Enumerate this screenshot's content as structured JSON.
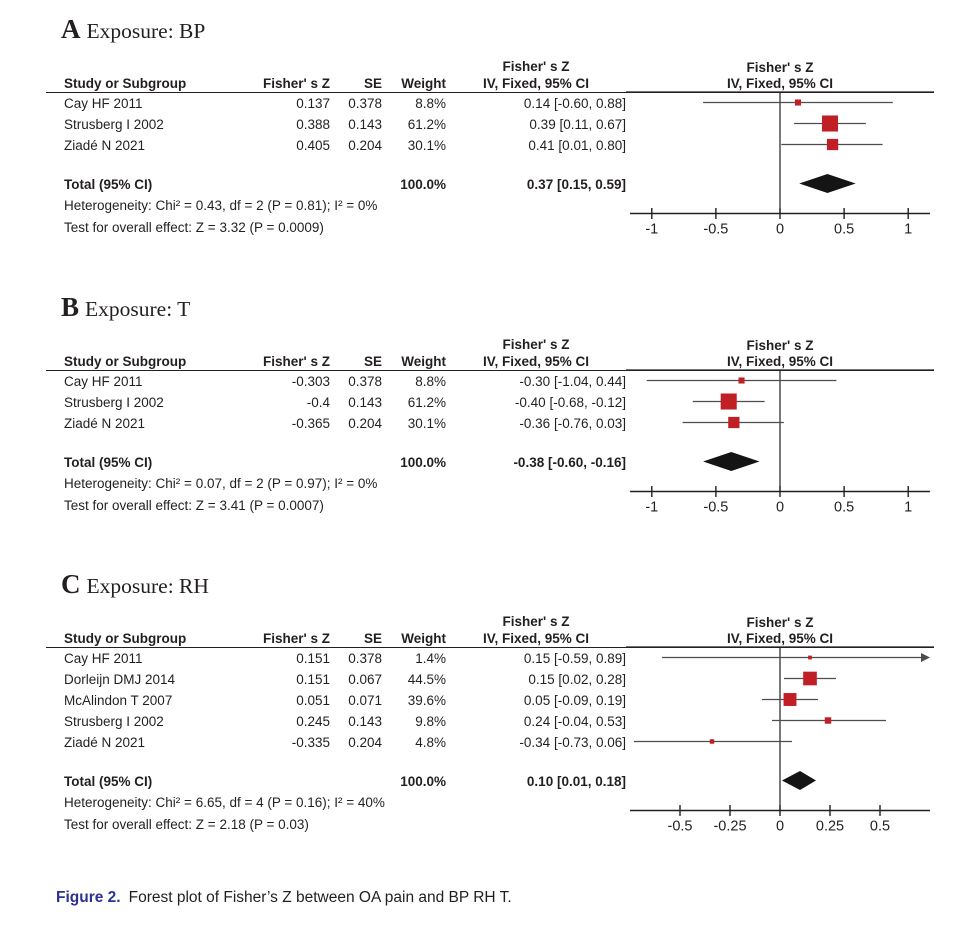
{
  "colors": {
    "marker_red": "#c01f26",
    "diamond_black": "#141414",
    "ci_line": "#4d4d4f",
    "rule_black": "#231f20",
    "caption_label_blue": "#2e3192"
  },
  "caption": {
    "label": "Figure 2.",
    "text": "Forest plot of Fisher’s Z between OA pain and BP RH T."
  },
  "chart_data": [
    {
      "type": "forest",
      "panel_label": "A",
      "title": "Exposure: BP",
      "columns": {
        "study": "Study or Subgroup",
        "effect": "Fisher' s Z",
        "se": "SE",
        "weight": "Weight",
        "ci": "IV, Fixed, 95% CI",
        "effect_group": "Fisher' s Z"
      },
      "studies": [
        {
          "name": "Cay HF 2011",
          "effect_text": "0.137",
          "se_text": "0.378",
          "weight_text": "8.8%",
          "ci_text": "0.14 [-0.60, 0.88]",
          "est": 0.14,
          "lo": -0.6,
          "hi": 0.88,
          "weight_pct": 8.8
        },
        {
          "name": "Strusberg I 2002",
          "effect_text": "0.388",
          "se_text": "0.143",
          "weight_text": "61.2%",
          "ci_text": "0.39 [0.11, 0.67]",
          "est": 0.39,
          "lo": 0.11,
          "hi": 0.67,
          "weight_pct": 61.2
        },
        {
          "name": "Ziadé N 2021",
          "effect_text": "0.405",
          "se_text": "0.204",
          "weight_text": "30.1%",
          "ci_text": "0.41 [0.01, 0.80]",
          "est": 0.41,
          "lo": 0.01,
          "hi": 0.8,
          "weight_pct": 30.1
        }
      ],
      "total": {
        "label": "Total (95% CI)",
        "weight_text": "100.0%",
        "ci_text": "0.37 [0.15, 0.59]",
        "est": 0.37,
        "lo": 0.15,
        "hi": 0.59
      },
      "heterogeneity": "Heterogeneity: Chi² = 0.43, df = 2 (P = 0.81); I² = 0%",
      "overall_effect": "Test for overall effect: Z = 3.32 (P = 0.0009)",
      "axis": {
        "min": -1.17,
        "max": 1.17,
        "ticks": [
          -1,
          -0.5,
          0,
          0.5,
          1
        ],
        "tick_labels": [
          "-1",
          "-0.5",
          "0",
          "0.5",
          "1"
        ]
      }
    },
    {
      "type": "forest",
      "panel_label": "B",
      "title": "Exposure: T",
      "columns": {
        "study": "Study or Subgroup",
        "effect": "Fisher' s Z",
        "se": "SE",
        "weight": "Weight",
        "ci": "IV, Fixed, 95% CI",
        "effect_group": "Fisher' s Z"
      },
      "studies": [
        {
          "name": "Cay HF 2011",
          "effect_text": "-0.303",
          "se_text": "0.378",
          "weight_text": "8.8%",
          "ci_text": "-0.30 [-1.04, 0.44]",
          "est": -0.3,
          "lo": -1.04,
          "hi": 0.44,
          "weight_pct": 8.8
        },
        {
          "name": "Strusberg I 2002",
          "effect_text": "-0.4",
          "se_text": "0.143",
          "weight_text": "61.2%",
          "ci_text": "-0.40 [-0.68, -0.12]",
          "est": -0.4,
          "lo": -0.68,
          "hi": -0.12,
          "weight_pct": 61.2
        },
        {
          "name": "Ziadé N 2021",
          "effect_text": "-0.365",
          "se_text": "0.204",
          "weight_text": "30.1%",
          "ci_text": "-0.36 [-0.76, 0.03]",
          "est": -0.36,
          "lo": -0.76,
          "hi": 0.03,
          "weight_pct": 30.1
        }
      ],
      "total": {
        "label": "Total (95% CI)",
        "weight_text": "100.0%",
        "ci_text": "-0.38 [-0.60, -0.16]",
        "est": -0.38,
        "lo": -0.6,
        "hi": -0.16
      },
      "heterogeneity": "Heterogeneity: Chi² = 0.07, df = 2 (P = 0.97); I² = 0%",
      "overall_effect": "Test for overall effect: Z = 3.41 (P = 0.0007)",
      "axis": {
        "min": -1.17,
        "max": 1.17,
        "ticks": [
          -1,
          -0.5,
          0,
          0.5,
          1
        ],
        "tick_labels": [
          "-1",
          "-0.5",
          "0",
          "0.5",
          "1"
        ]
      }
    },
    {
      "type": "forest",
      "panel_label": "C",
      "title": "Exposure: RH",
      "columns": {
        "study": "Study or Subgroup",
        "effect": "Fisher' s Z",
        "se": "SE",
        "weight": "Weight",
        "ci": "IV, Fixed, 95% CI",
        "effect_group": "Fisher' s Z"
      },
      "studies": [
        {
          "name": "Cay HF 2011",
          "effect_text": "0.151",
          "se_text": "0.378",
          "weight_text": "1.4%",
          "ci_text": "0.15 [-0.59, 0.89]",
          "est": 0.15,
          "lo": -0.59,
          "hi": 0.89,
          "weight_pct": 1.4
        },
        {
          "name": "Dorleijn DMJ 2014",
          "effect_text": "0.151",
          "se_text": "0.067",
          "weight_text": "44.5%",
          "ci_text": "0.15 [0.02, 0.28]",
          "est": 0.15,
          "lo": 0.02,
          "hi": 0.28,
          "weight_pct": 44.5
        },
        {
          "name": "McAlindon T 2007",
          "effect_text": "0.051",
          "se_text": "0.071",
          "weight_text": "39.6%",
          "ci_text": "0.05 [-0.09, 0.19]",
          "est": 0.05,
          "lo": -0.09,
          "hi": 0.19,
          "weight_pct": 39.6
        },
        {
          "name": "Strusberg I 2002",
          "effect_text": "0.245",
          "se_text": "0.143",
          "weight_text": "9.8%",
          "ci_text": "0.24 [-0.04, 0.53]",
          "est": 0.24,
          "lo": -0.04,
          "hi": 0.53,
          "weight_pct": 9.8
        },
        {
          "name": "Ziadé N 2021",
          "effect_text": "-0.335",
          "se_text": "0.204",
          "weight_text": "4.8%",
          "ci_text": "-0.34 [-0.73, 0.06]",
          "est": -0.34,
          "lo": -0.73,
          "hi": 0.06,
          "weight_pct": 4.8
        }
      ],
      "total": {
        "label": "Total (95% CI)",
        "weight_text": "100.0%",
        "ci_text": "0.10 [0.01, 0.18]",
        "est": 0.1,
        "lo": 0.01,
        "hi": 0.18
      },
      "heterogeneity": "Heterogeneity: Chi² = 6.65, df = 4 (P = 0.16); I² = 40%",
      "overall_effect": "Test for overall effect: Z = 2.18 (P = 0.03)",
      "axis": {
        "min": -0.75,
        "max": 0.75,
        "ticks": [
          -0.5,
          -0.25,
          0,
          0.25,
          0.5
        ],
        "tick_labels": [
          "-0.5",
          "-0.25",
          "0",
          "0.25",
          "0.5"
        ]
      }
    }
  ]
}
